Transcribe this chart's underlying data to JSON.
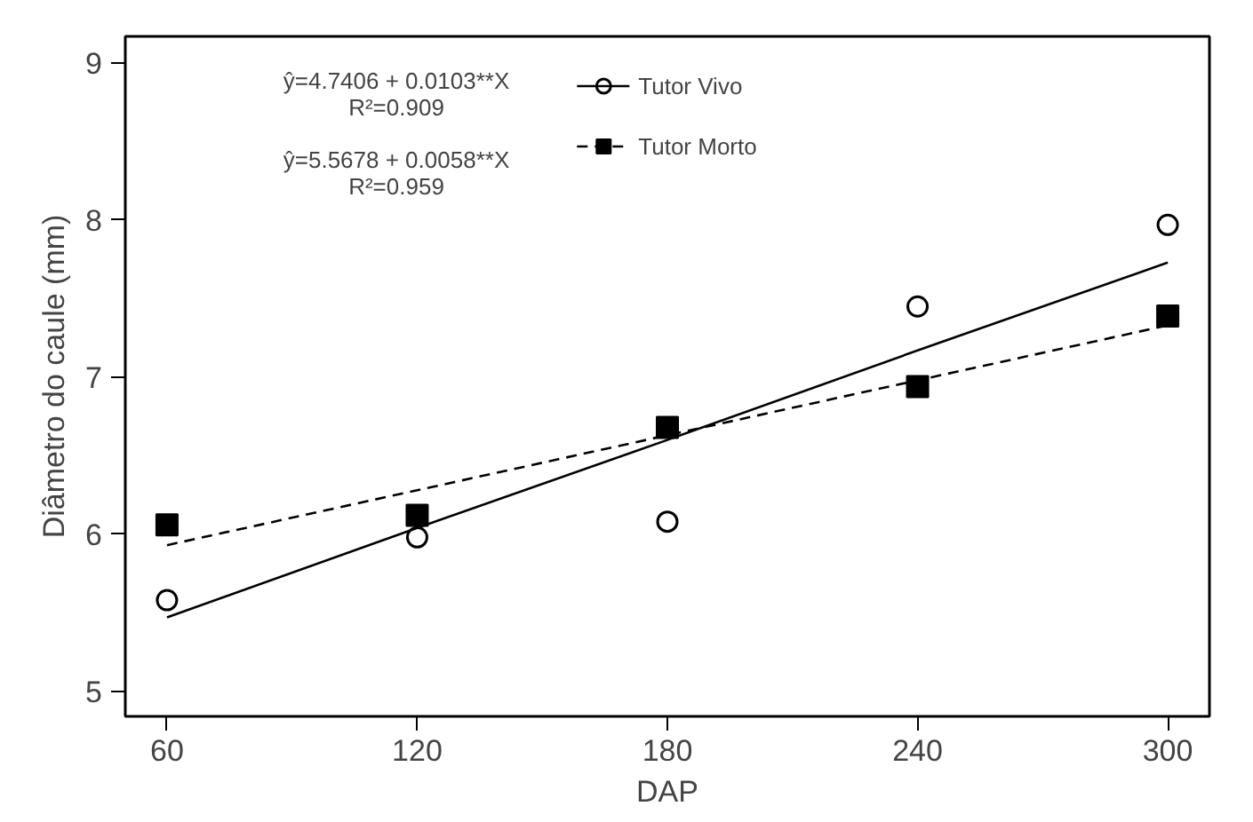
{
  "chart_data": {
    "type": "scatter",
    "xlabel": "DAP",
    "ylabel": "Diâmetro do caule (mm)",
    "x": [
      60,
      120,
      180,
      240,
      300
    ],
    "series": [
      {
        "name": "Tutor Vivo",
        "marker": "circle",
        "color": "#000000",
        "values": [
          5.58,
          5.98,
          6.08,
          7.45,
          7.97
        ]
      },
      {
        "type": "line",
        "line_style": "solid",
        "color": "#000000",
        "values": [
          5.47,
          6.04,
          6.6,
          7.17,
          7.73
        ]
      },
      {
        "name": "Tutor Morto",
        "marker": "square",
        "color": "#000000",
        "values": [
          6.06,
          6.12,
          6.68,
          6.94,
          7.39
        ]
      },
      {
        "type": "line",
        "line_style": "dashed",
        "color": "#000000",
        "values": [
          5.93,
          6.28,
          6.63,
          6.98,
          7.33
        ]
      }
    ],
    "annotations": [
      "ŷ=4.7406 + 0.0103**X\nR²=0.909",
      "ŷ=5.5678 + 0.0058**X\nR²=0.959"
    ],
    "xlim": [
      50,
      310
    ],
    "ylim": [
      4.84,
      9.17
    ],
    "xticks": [
      60,
      120,
      180,
      240,
      300
    ],
    "yticks": [
      5,
      6,
      7,
      8,
      9
    ],
    "grid": false,
    "legend": "top"
  }
}
